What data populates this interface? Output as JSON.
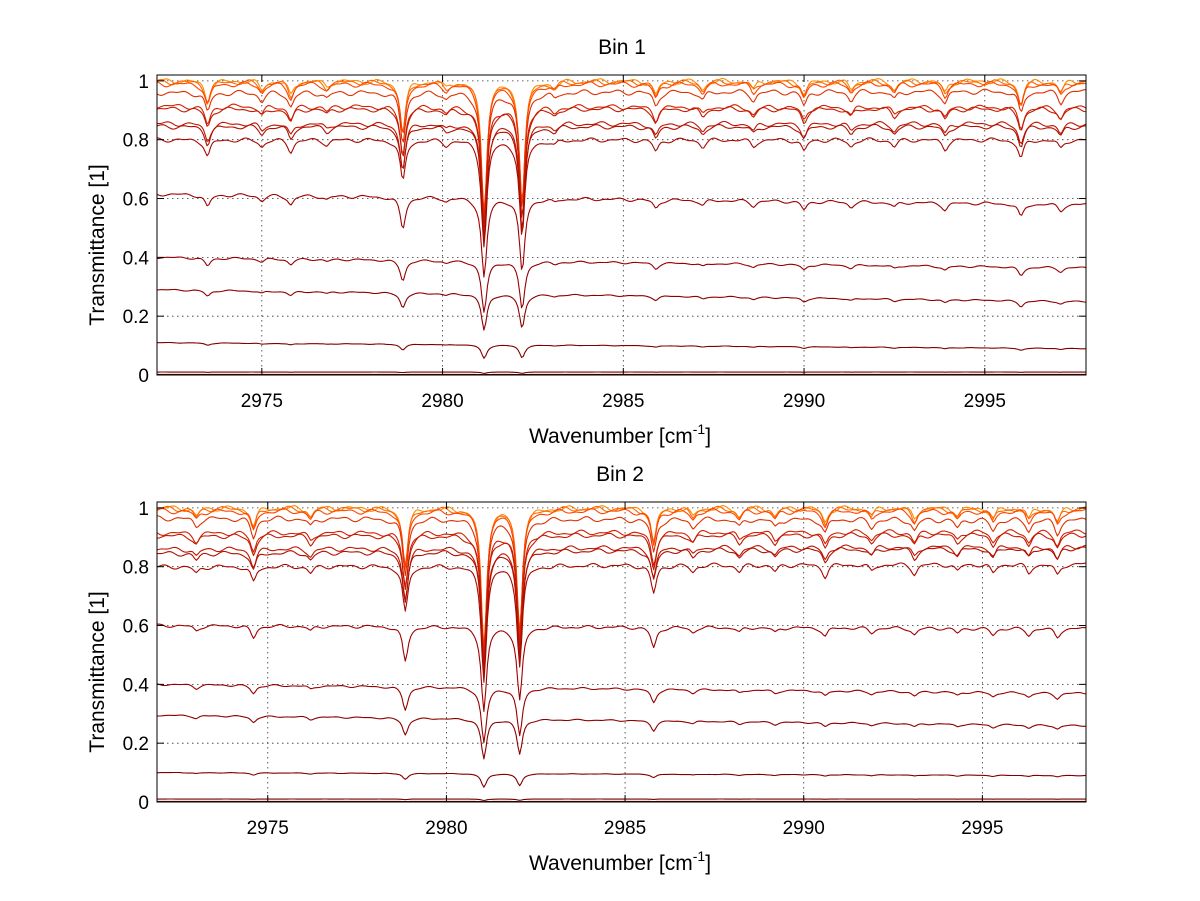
{
  "chart_data": [
    {
      "type": "line",
      "title": "Bin 1",
      "xlabel": "Wavenumber [cm",
      "xlabel_superscript": "-1",
      "xlabel_suffix": "]",
      "ylabel": "Transmittance [1]",
      "xlim": [
        2972.1,
        2997.8
      ],
      "ylim": [
        0,
        1.02
      ],
      "xticks": [
        2975,
        2980,
        2985,
        2990,
        2995
      ],
      "yticks": [
        0,
        0.2,
        0.4,
        0.6,
        0.8,
        1
      ],
      "ytick_labels": [
        "0",
        "0.2",
        "0.4",
        "0.6",
        "0.8",
        "1"
      ],
      "grid": true,
      "dips": [
        {
          "x": 2973.5,
          "depth": 0.07
        },
        {
          "x": 2975.0,
          "depth": 0.03
        },
        {
          "x": 2975.8,
          "depth": 0.05
        },
        {
          "x": 2976.8,
          "depth": 0.02
        },
        {
          "x": 2978.9,
          "depth": 0.18
        },
        {
          "x": 2980.1,
          "depth": 0.02
        },
        {
          "x": 2981.15,
          "depth": 0.45
        },
        {
          "x": 2982.2,
          "depth": 0.42
        },
        {
          "x": 2983.1,
          "depth": 0.02
        },
        {
          "x": 2985.9,
          "depth": 0.05
        },
        {
          "x": 2987.2,
          "depth": 0.03
        },
        {
          "x": 2988.6,
          "depth": 0.03
        },
        {
          "x": 2990.0,
          "depth": 0.05
        },
        {
          "x": 2991.3,
          "depth": 0.03
        },
        {
          "x": 2992.5,
          "depth": 0.03
        },
        {
          "x": 2993.9,
          "depth": 0.04
        },
        {
          "x": 2996.0,
          "depth": 0.08
        },
        {
          "x": 2997.1,
          "depth": 0.04
        }
      ],
      "series": [
        {
          "start": 1.0,
          "end": 1.0,
          "color": "#ff8c00"
        },
        {
          "start": 0.997,
          "end": 0.996,
          "color": "#ff6a00"
        },
        {
          "start": 0.99,
          "end": 0.99,
          "color": "#ff4500"
        },
        {
          "start": 0.96,
          "end": 0.965,
          "color": "#e03000"
        },
        {
          "start": 0.915,
          "end": 0.91,
          "color": "#d42000"
        },
        {
          "start": 0.905,
          "end": 0.905,
          "color": "#c41a00"
        },
        {
          "start": 0.855,
          "end": 0.855,
          "color": "#c01500"
        },
        {
          "start": 0.845,
          "end": 0.845,
          "color": "#b01000"
        },
        {
          "start": 0.8,
          "end": 0.8,
          "color": "#a80800"
        },
        {
          "start": 0.615,
          "end": 0.58,
          "color": "#a00000"
        },
        {
          "start": 0.4,
          "end": 0.365,
          "color": "#980000"
        },
        {
          "start": 0.29,
          "end": 0.25,
          "color": "#8c0000"
        },
        {
          "start": 0.11,
          "end": 0.09,
          "color": "#800000"
        },
        {
          "start": 0.01,
          "end": 0.01,
          "color": "#700000"
        },
        {
          "start": 0.002,
          "end": 0.002,
          "color": "#600000"
        }
      ]
    },
    {
      "type": "line",
      "title": "Bin 2",
      "xlabel": "Wavenumber [cm",
      "xlabel_superscript": "-1",
      "xlabel_suffix": "]",
      "ylabel": "Transmittance [1]",
      "xlim": [
        2971.9,
        2997.9
      ],
      "ylim": [
        0,
        1.02
      ],
      "xticks": [
        2975,
        2980,
        2985,
        2990,
        2995
      ],
      "yticks": [
        0,
        0.2,
        0.4,
        0.6,
        0.8,
        1
      ],
      "ytick_labels": [
        "0",
        "0.2",
        "0.4",
        "0.6",
        "0.8",
        "1"
      ],
      "grid": true,
      "dips": [
        {
          "x": 2973.0,
          "depth": 0.03
        },
        {
          "x": 2974.6,
          "depth": 0.07
        },
        {
          "x": 2976.2,
          "depth": 0.03
        },
        {
          "x": 2978.85,
          "depth": 0.2
        },
        {
          "x": 2981.05,
          "depth": 0.48
        },
        {
          "x": 2982.05,
          "depth": 0.42
        },
        {
          "x": 2985.8,
          "depth": 0.12
        },
        {
          "x": 2986.9,
          "depth": 0.03
        },
        {
          "x": 2988.2,
          "depth": 0.03
        },
        {
          "x": 2989.2,
          "depth": 0.03
        },
        {
          "x": 2990.6,
          "depth": 0.05
        },
        {
          "x": 2991.9,
          "depth": 0.03
        },
        {
          "x": 2993.1,
          "depth": 0.04
        },
        {
          "x": 2994.3,
          "depth": 0.03
        },
        {
          "x": 2995.3,
          "depth": 0.04
        },
        {
          "x": 2996.3,
          "depth": 0.04
        },
        {
          "x": 2997.1,
          "depth": 0.05
        }
      ],
      "series": [
        {
          "start": 1.0,
          "end": 1.0,
          "color": "#ff8c00"
        },
        {
          "start": 0.998,
          "end": 0.997,
          "color": "#ff6a00"
        },
        {
          "start": 0.99,
          "end": 0.99,
          "color": "#ff4500"
        },
        {
          "start": 0.965,
          "end": 0.96,
          "color": "#e03000"
        },
        {
          "start": 0.915,
          "end": 0.92,
          "color": "#d42000"
        },
        {
          "start": 0.905,
          "end": 0.91,
          "color": "#c41a00"
        },
        {
          "start": 0.86,
          "end": 0.87,
          "color": "#c01500"
        },
        {
          "start": 0.845,
          "end": 0.865,
          "color": "#b01000"
        },
        {
          "start": 0.8,
          "end": 0.81,
          "color": "#a80800"
        },
        {
          "start": 0.6,
          "end": 0.59,
          "color": "#a00000"
        },
        {
          "start": 0.4,
          "end": 0.37,
          "color": "#980000"
        },
        {
          "start": 0.295,
          "end": 0.26,
          "color": "#8c0000"
        },
        {
          "start": 0.1,
          "end": 0.09,
          "color": "#800000"
        },
        {
          "start": 0.01,
          "end": 0.01,
          "color": "#700000"
        },
        {
          "start": 0.002,
          "end": 0.002,
          "color": "#600000"
        }
      ]
    }
  ]
}
